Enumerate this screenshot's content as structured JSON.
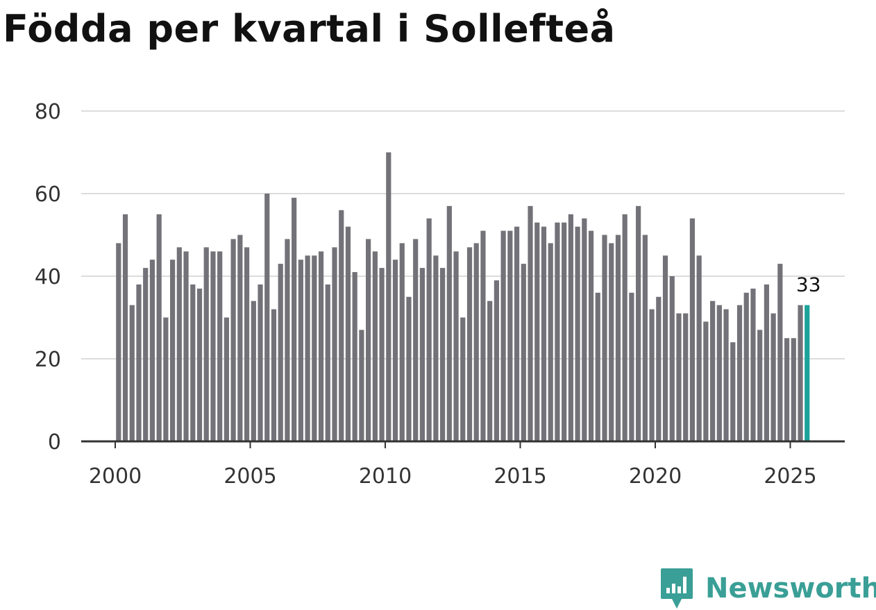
{
  "title": "Födda per kvartal i Sollefteå",
  "brand": {
    "name": "Newsworthy",
    "icon": "newsworthy-logo-icon",
    "color": "#3a9f96"
  },
  "colors": {
    "bar": "#737278",
    "highlight": "#1ba39a",
    "grid": "#dcdcdc",
    "axis": "#333333"
  },
  "chart_data": {
    "type": "bar",
    "title": "Födda per kvartal i Sollefteå",
    "xlabel": "",
    "ylabel": "",
    "ylim": [
      0,
      80
    ],
    "yticks": [
      "0",
      "20",
      "40",
      "60",
      "80"
    ],
    "xticks": [
      "2000",
      "2005",
      "2010",
      "2015",
      "2020",
      "2025"
    ],
    "grid": true,
    "categories": [
      "2000 Q1",
      "2000 Q2",
      "2000 Q3",
      "2000 Q4",
      "2001 Q1",
      "2001 Q2",
      "2001 Q3",
      "2001 Q4",
      "2002 Q1",
      "2002 Q2",
      "2002 Q3",
      "2002 Q4",
      "2003 Q1",
      "2003 Q2",
      "2003 Q3",
      "2003 Q4",
      "2004 Q1",
      "2004 Q2",
      "2004 Q3",
      "2004 Q4",
      "2005 Q1",
      "2005 Q2",
      "2005 Q3",
      "2005 Q4",
      "2006 Q1",
      "2006 Q2",
      "2006 Q3",
      "2006 Q4",
      "2007 Q1",
      "2007 Q2",
      "2007 Q3",
      "2007 Q4",
      "2008 Q1",
      "2008 Q2",
      "2008 Q3",
      "2008 Q4",
      "2009 Q1",
      "2009 Q2",
      "2009 Q3",
      "2009 Q4",
      "2010 Q1",
      "2010 Q2",
      "2010 Q3",
      "2010 Q4",
      "2011 Q1",
      "2011 Q2",
      "2011 Q3",
      "2011 Q4",
      "2012 Q1",
      "2012 Q2",
      "2012 Q3",
      "2012 Q4",
      "2013 Q1",
      "2013 Q2",
      "2013 Q3",
      "2013 Q4",
      "2014 Q1",
      "2014 Q2",
      "2014 Q3",
      "2014 Q4",
      "2015 Q1",
      "2015 Q2",
      "2015 Q3",
      "2015 Q4",
      "2016 Q1",
      "2016 Q2",
      "2016 Q3",
      "2016 Q4",
      "2017 Q1",
      "2017 Q2",
      "2017 Q3",
      "2017 Q4",
      "2018 Q1",
      "2018 Q2",
      "2018 Q3",
      "2018 Q4",
      "2019 Q1",
      "2019 Q2",
      "2019 Q3",
      "2019 Q4",
      "2020 Q1",
      "2020 Q2",
      "2020 Q3",
      "2020 Q4",
      "2021 Q1",
      "2021 Q2",
      "2021 Q3",
      "2021 Q4",
      "2022 Q1",
      "2022 Q2",
      "2022 Q3",
      "2022 Q4",
      "2023 Q1",
      "2023 Q2",
      "2023 Q3",
      "2023 Q4",
      "2024 Q1",
      "2024 Q2",
      "2024 Q3",
      "2024 Q4",
      "2025 Q1",
      "2025 Q2",
      "2025 Q3"
    ],
    "values": [
      48,
      55,
      33,
      38,
      42,
      44,
      55,
      30,
      44,
      47,
      46,
      38,
      37,
      47,
      46,
      46,
      30,
      49,
      50,
      47,
      34,
      38,
      60,
      32,
      43,
      49,
      59,
      44,
      45,
      45,
      46,
      38,
      47,
      56,
      52,
      41,
      27,
      49,
      46,
      42,
      70,
      44,
      48,
      35,
      49,
      42,
      54,
      45,
      42,
      57,
      46,
      30,
      47,
      48,
      51,
      34,
      39,
      51,
      51,
      52,
      43,
      57,
      53,
      52,
      48,
      53,
      53,
      55,
      52,
      54,
      51,
      36,
      50,
      48,
      50,
      55,
      36,
      57,
      50,
      32,
      35,
      45,
      40,
      31,
      31,
      54,
      45,
      29,
      34,
      33,
      32,
      24,
      33,
      36,
      37,
      27,
      38,
      31,
      43,
      25,
      25,
      33,
      33
    ],
    "highlight_index": 102,
    "highlight_label": "33"
  }
}
